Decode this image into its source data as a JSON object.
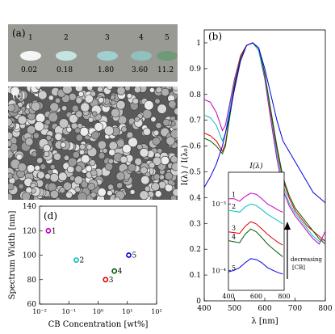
{
  "panel_a": {
    "label": "(a)",
    "samples": [
      {
        "index": "1",
        "value": "0.02",
        "color": "#f2f6f4"
      },
      {
        "index": "2",
        "value": "0.18",
        "color": "#c4e4e2"
      },
      {
        "index": "3",
        "value": "1.80",
        "color": "#9fd0cf"
      },
      {
        "index": "4",
        "value": "3.60",
        "color": "#8fc2bc"
      },
      {
        "index": "5",
        "value": "11.2",
        "color": "#6f9a78"
      }
    ]
  },
  "panel_c": {
    "label": "(c)"
  },
  "chart_data": [
    {
      "panel": "(b)",
      "type": "line",
      "xlabel": "λ [nm]",
      "ylabel": "I(λ) / I(λ₀)",
      "xlim": [
        400,
        800
      ],
      "ylim": [
        0,
        1.05
      ],
      "xticks": [
        "400",
        "500",
        "600",
        "700",
        "800"
      ],
      "yticks": [
        "0",
        "0.1",
        "0.2",
        "0.3",
        "0.4",
        "0.5",
        "0.6",
        "0.7",
        "0.8",
        "0.9",
        "1"
      ],
      "series": [
        {
          "color": "#c000c0",
          "x": [
            400,
            420,
            440,
            460,
            470,
            480,
            500,
            520,
            540,
            560,
            580,
            600,
            620,
            640,
            660,
            680,
            700,
            720,
            740,
            760,
            780,
            800
          ],
          "y": [
            0.78,
            0.77,
            0.73,
            0.66,
            0.68,
            0.74,
            0.86,
            0.95,
            0.99,
            1.0,
            0.97,
            0.86,
            0.7,
            0.55,
            0.43,
            0.37,
            0.33,
            0.3,
            0.27,
            0.24,
            0.22,
            0.27
          ]
        },
        {
          "color": "#00c0c0",
          "x": [
            400,
            420,
            440,
            460,
            470,
            480,
            500,
            520,
            540,
            560,
            580,
            600,
            620,
            640,
            660,
            680,
            700,
            720,
            740,
            760,
            780,
            800
          ],
          "y": [
            0.72,
            0.71,
            0.68,
            0.62,
            0.65,
            0.72,
            0.85,
            0.95,
            0.99,
            1.0,
            0.97,
            0.87,
            0.72,
            0.57,
            0.45,
            0.38,
            0.34,
            0.31,
            0.28,
            0.25,
            0.23,
            0.24
          ]
        },
        {
          "color": "#e00000",
          "x": [
            400,
            420,
            440,
            460,
            470,
            480,
            500,
            520,
            540,
            560,
            580,
            600,
            620,
            640,
            660,
            680,
            700,
            720,
            740,
            760,
            780,
            800
          ],
          "y": [
            0.65,
            0.64,
            0.62,
            0.58,
            0.61,
            0.69,
            0.84,
            0.95,
            0.99,
            1.0,
            0.98,
            0.88,
            0.73,
            0.59,
            0.47,
            0.4,
            0.35,
            0.32,
            0.29,
            0.27,
            0.25,
            0.23
          ]
        },
        {
          "color": "#006000",
          "x": [
            400,
            420,
            440,
            460,
            470,
            480,
            500,
            520,
            540,
            560,
            580,
            600,
            620,
            640,
            660,
            680,
            700,
            720,
            740,
            760,
            780,
            800
          ],
          "y": [
            0.63,
            0.62,
            0.6,
            0.57,
            0.6,
            0.68,
            0.83,
            0.94,
            0.99,
            1.0,
            0.98,
            0.88,
            0.74,
            0.6,
            0.48,
            0.41,
            0.36,
            0.33,
            0.3,
            0.27,
            0.24,
            0.22
          ]
        },
        {
          "color": "#0000e0",
          "x": [
            400,
            420,
            440,
            460,
            480,
            500,
            520,
            540,
            560,
            580,
            600,
            620,
            640,
            660,
            680,
            700,
            720,
            740,
            760,
            780,
            800
          ],
          "y": [
            0.44,
            0.48,
            0.53,
            0.6,
            0.7,
            0.82,
            0.93,
            0.99,
            1.0,
            0.98,
            0.9,
            0.8,
            0.7,
            0.62,
            0.58,
            0.54,
            0.5,
            0.46,
            0.42,
            0.4,
            0.38
          ]
        }
      ]
    },
    {
      "panel": "(b) inset",
      "type": "line",
      "title": "I(λ)",
      "yscale": "log",
      "xlim": [
        400,
        800
      ],
      "ylim": [
        5e-05,
        0.003
      ],
      "xticks": [
        "400",
        "600",
        "800"
      ],
      "yticks": [
        "10⁻³",
        "10⁻⁴"
      ],
      "annotation": "decreasing [CB]",
      "series": [
        {
          "name": "1",
          "color": "#c000c0",
          "x": [
            400,
            440,
            480,
            520,
            560,
            600,
            640,
            680,
            720,
            760,
            790
          ],
          "y": [
            0.0012,
            0.0012,
            0.0011,
            0.0013,
            0.00145,
            0.0014,
            0.0012,
            0.001,
            0.0009,
            0.0008,
            0.00075
          ]
        },
        {
          "name": "2",
          "color": "#00c0c0",
          "x": [
            400,
            440,
            480,
            520,
            560,
            600,
            640,
            680,
            720,
            760,
            790
          ],
          "y": [
            0.0008,
            0.00078,
            0.00075,
            0.0009,
            0.001,
            0.00095,
            0.00082,
            0.0007,
            0.00062,
            0.00055,
            0.0005
          ]
        },
        {
          "name": "3",
          "color": "#e00000",
          "x": [
            400,
            440,
            480,
            520,
            560,
            600,
            640,
            680,
            720,
            760,
            790
          ],
          "y": [
            0.00038,
            0.00037,
            0.00036,
            0.00046,
            0.00054,
            0.0005,
            0.00042,
            0.00035,
            0.0003,
            0.00026,
            0.00024
          ]
        },
        {
          "name": "4",
          "color": "#006000",
          "x": [
            400,
            440,
            480,
            520,
            560,
            600,
            640,
            680,
            720,
            760,
            790
          ],
          "y": [
            0.00028,
            0.00027,
            0.00026,
            0.00035,
            0.00042,
            0.00038,
            0.00031,
            0.00025,
            0.00021,
            0.00018,
            0.00016
          ]
        },
        {
          "name": "5",
          "color": "#0000e0",
          "x": [
            400,
            440,
            480,
            520,
            560,
            600,
            640,
            680,
            720,
            760,
            790
          ],
          "y": [
            9.5e-05,
            0.0001,
            0.00011,
            0.00013,
            0.00015,
            0.000145,
            0.00013,
            0.00011,
            0.0001,
            9.2e-05,
            8.8e-05
          ]
        }
      ]
    },
    {
      "panel": "(d)",
      "type": "scatter",
      "xscale": "log",
      "xlabel": "CB Concentration [wt%]",
      "ylabel": "Spectrum Width [nm]",
      "xlim": [
        0.01,
        100
      ],
      "ylim": [
        60,
        140
      ],
      "xticks": [
        "10⁻²",
        "10⁻¹",
        "10⁰",
        "10¹",
        "10²"
      ],
      "yticks": [
        "60",
        "80",
        "100",
        "120",
        "140"
      ],
      "points": [
        {
          "label": "1",
          "x": 0.02,
          "y": 120,
          "color": "#c000c0"
        },
        {
          "label": "2",
          "x": 0.18,
          "y": 96,
          "color": "#00c0c0"
        },
        {
          "label": "3",
          "x": 1.8,
          "y": 80,
          "color": "#e00000"
        },
        {
          "label": "4",
          "x": 3.6,
          "y": 87,
          "color": "#006000"
        },
        {
          "label": "5",
          "x": 11.2,
          "y": 100,
          "color": "#0000e0"
        }
      ]
    }
  ]
}
